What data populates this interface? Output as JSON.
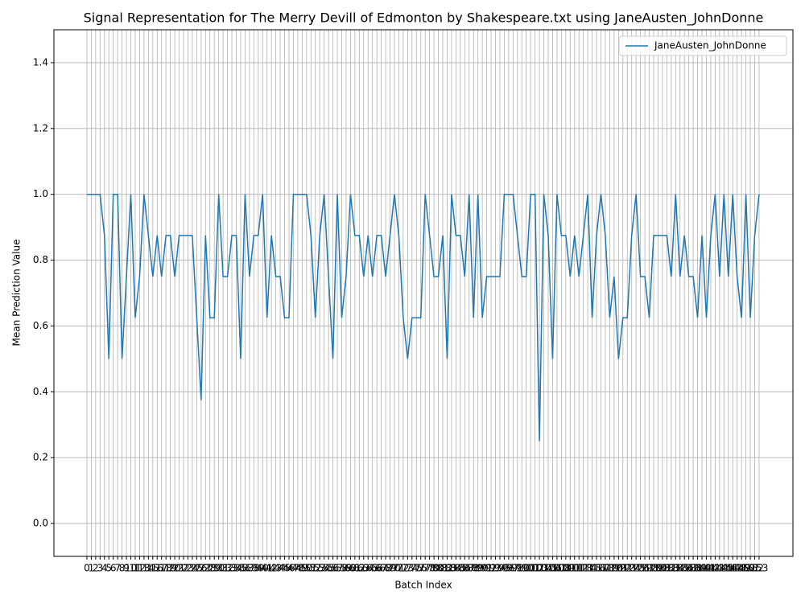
{
  "chart_data": {
    "type": "line",
    "title": "Signal Representation for The Merry Devill of Edmonton by Shakespeare.txt using JaneAusten_JohnDonne",
    "x_label": "Batch Index",
    "y_label": "Mean Prediction Value",
    "legend_position": "upper right",
    "grid": true,
    "x": [
      0,
      1,
      2,
      3,
      4,
      5,
      6,
      7,
      8,
      9,
      10,
      11,
      12,
      13,
      14,
      15,
      16,
      17,
      18,
      19,
      20,
      21,
      22,
      23,
      24,
      25,
      26,
      27,
      28,
      29,
      30,
      31,
      32,
      33,
      34,
      35,
      36,
      37,
      38,
      39,
      40,
      41,
      42,
      43,
      44,
      45,
      46,
      47,
      48,
      49,
      50,
      51,
      52,
      53,
      54,
      55,
      56,
      57,
      58,
      59,
      60,
      61,
      62,
      63,
      64,
      65,
      66,
      67,
      68,
      69,
      70,
      71,
      72,
      73,
      74,
      75,
      76,
      77,
      78,
      79,
      80,
      81,
      82,
      83,
      84,
      85,
      86,
      87,
      88,
      89,
      90,
      91,
      92,
      93,
      94,
      95,
      96,
      97,
      98,
      99,
      100,
      101,
      102,
      103,
      104,
      105,
      106,
      107,
      108,
      109,
      110,
      111,
      112,
      113,
      114,
      115,
      116,
      117,
      118,
      119,
      120,
      121,
      122,
      123,
      124,
      125,
      126,
      127,
      128,
      129,
      130,
      131,
      132,
      133,
      134,
      135,
      136,
      137,
      138,
      139,
      140,
      141,
      142,
      143,
      144,
      145,
      146,
      147,
      148,
      149,
      150,
      151,
      152,
      153
    ],
    "series": [
      {
        "name": "JaneAusten_JohnDonne",
        "color": "#1f77b4",
        "values": [
          1,
          1,
          1,
          1,
          0.875,
          0.5,
          1,
          1,
          0.5,
          0.75,
          1,
          0.625,
          0.75,
          1,
          0.875,
          0.75,
          0.875,
          0.75,
          0.875,
          0.875,
          0.75,
          0.875,
          0.875,
          0.875,
          0.875,
          0.625,
          0.375,
          0.875,
          0.625,
          0.625,
          1,
          0.75,
          0.75,
          0.875,
          0.875,
          0.5,
          1,
          0.75,
          0.875,
          0.875,
          1,
          0.625,
          0.875,
          0.75,
          0.75,
          0.625,
          0.625,
          1,
          1,
          1,
          1,
          0.875,
          0.625,
          0.875,
          1,
          0.75,
          0.5,
          1,
          0.625,
          0.75,
          1,
          0.875,
          0.875,
          0.75,
          0.875,
          0.75,
          0.875,
          0.875,
          0.75,
          0.875,
          1,
          0.875,
          0.625,
          0.5,
          0.625,
          0.625,
          0.625,
          1,
          0.875,
          0.75,
          0.75,
          0.875,
          0.5,
          1,
          0.875,
          0.875,
          0.75,
          1,
          0.625,
          1,
          0.625,
          0.75,
          0.75,
          0.75,
          0.75,
          1,
          1,
          1,
          0.875,
          0.75,
          0.75,
          1,
          1,
          0.25,
          1,
          0.875,
          0.5,
          1,
          0.875,
          0.875,
          0.75,
          0.875,
          0.75,
          0.875,
          1,
          0.625,
          0.875,
          1,
          0.875,
          0.625,
          0.75,
          0.5,
          0.625,
          0.625,
          0.875,
          1,
          0.75,
          0.75,
          0.625,
          0.875,
          0.875,
          0.875,
          0.875,
          0.75,
          1,
          0.75,
          0.875,
          0.75,
          0.75,
          0.625,
          0.875,
          0.625,
          0.875,
          1,
          0.75,
          1,
          0.75,
          1,
          0.75,
          0.625,
          1,
          0.625,
          0.875,
          1
        ]
      }
    ],
    "xlim": [
      -7.5,
      160.7
    ],
    "ylim": [
      -0.1,
      1.5
    ],
    "xticks": [
      0,
      1,
      2,
      3,
      4,
      5,
      6,
      7,
      8,
      9,
      10,
      11,
      12,
      13,
      14,
      15,
      16,
      17,
      18,
      19,
      20,
      21,
      22,
      23,
      24,
      25,
      26,
      27,
      28,
      29,
      30,
      31,
      32,
      33,
      34,
      35,
      36,
      37,
      38,
      39,
      40,
      41,
      42,
      43,
      44,
      45,
      46,
      47,
      48,
      49,
      50,
      51,
      52,
      53,
      54,
      55,
      56,
      57,
      58,
      59,
      60,
      61,
      62,
      63,
      64,
      65,
      66,
      67,
      68,
      69,
      70,
      71,
      72,
      73,
      74,
      75,
      76,
      77,
      78,
      79,
      80,
      81,
      82,
      83,
      84,
      85,
      86,
      87,
      88,
      89,
      90,
      91,
      92,
      93,
      94,
      95,
      96,
      97,
      98,
      99,
      100,
      101,
      102,
      103,
      104,
      105,
      106,
      107,
      108,
      109,
      110,
      111,
      112,
      113,
      114,
      115,
      116,
      117,
      118,
      119,
      120,
      121,
      122,
      123,
      124,
      125,
      126,
      127,
      128,
      129,
      130,
      131,
      132,
      133,
      134,
      135,
      136,
      137,
      138,
      139,
      140,
      141,
      142,
      143,
      144,
      145,
      146,
      147,
      148,
      149,
      150,
      151,
      152,
      153
    ],
    "yticks": [
      {
        "value": 0,
        "label": "0.0"
      },
      0.2,
      0.4,
      0.6,
      0.8,
      {
        "value": 1,
        "label": "1.0"
      },
      1.2,
      1.4
    ]
  }
}
